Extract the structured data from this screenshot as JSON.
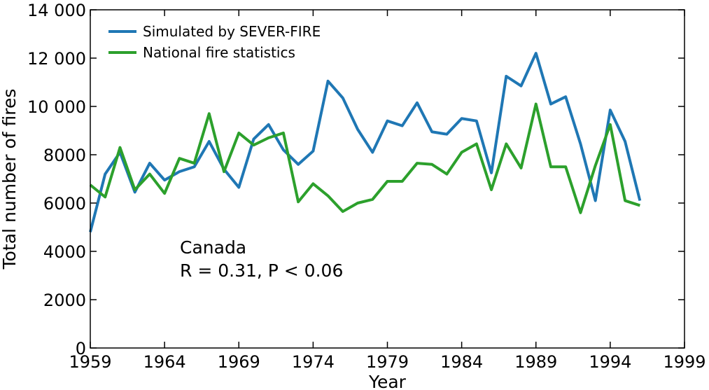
{
  "chart_data": {
    "type": "line",
    "xlabel": "Year",
    "ylabel": "Total number of fires",
    "xlim": [
      1959,
      1999
    ],
    "ylim": [
      0,
      14000
    ],
    "x_ticks": [
      1959,
      1964,
      1969,
      1974,
      1979,
      1984,
      1989,
      1994,
      1999
    ],
    "x_tick_labels": [
      "1959",
      "1964",
      "1969",
      "1974",
      "1979",
      "1984",
      "1989",
      "1994",
      "1999"
    ],
    "y_ticks": [
      0,
      2000,
      4000,
      6000,
      8000,
      10000,
      12000,
      14000
    ],
    "y_tick_labels": [
      "0",
      "2000",
      "4000",
      "6000",
      "8000",
      "10 000",
      "12 000",
      "14 000"
    ],
    "grid": false,
    "legend_position": "top-left",
    "annotation_lines": [
      "Canada",
      "R = 0.31, P < 0.06"
    ],
    "x": [
      1959,
      1960,
      1961,
      1962,
      1963,
      1964,
      1965,
      1966,
      1967,
      1968,
      1969,
      1970,
      1971,
      1972,
      1973,
      1974,
      1975,
      1976,
      1977,
      1978,
      1979,
      1980,
      1981,
      1982,
      1983,
      1984,
      1985,
      1986,
      1987,
      1988,
      1989,
      1990,
      1991,
      1992,
      1993,
      1994,
      1995,
      1996
    ],
    "series": [
      {
        "name": "Simulated by SEVER-FIRE",
        "color": "#1f77b4",
        "values": [
          4800,
          7200,
          8100,
          6450,
          7650,
          6950,
          7300,
          7500,
          8550,
          7400,
          6650,
          8650,
          9250,
          8200,
          7600,
          8150,
          11050,
          10350,
          9050,
          8100,
          9400,
          9200,
          10150,
          8950,
          8850,
          9500,
          9400,
          7250,
          11250,
          10850,
          12200,
          10100,
          10400,
          8450,
          6100,
          9850,
          8550,
          6100
        ]
      },
      {
        "name": "National fire statistics",
        "color": "#2ca02c",
        "values": [
          6750,
          6250,
          8300,
          6550,
          7200,
          6400,
          7850,
          7650,
          9700,
          7300,
          8900,
          8400,
          8700,
          8900,
          6050,
          6800,
          6300,
          5650,
          6000,
          6150,
          6900,
          6900,
          7650,
          7600,
          7200,
          8100,
          8450,
          6550,
          8450,
          7450,
          10100,
          7500,
          7500,
          5600,
          7550,
          9250,
          6100,
          5900
        ]
      }
    ]
  }
}
